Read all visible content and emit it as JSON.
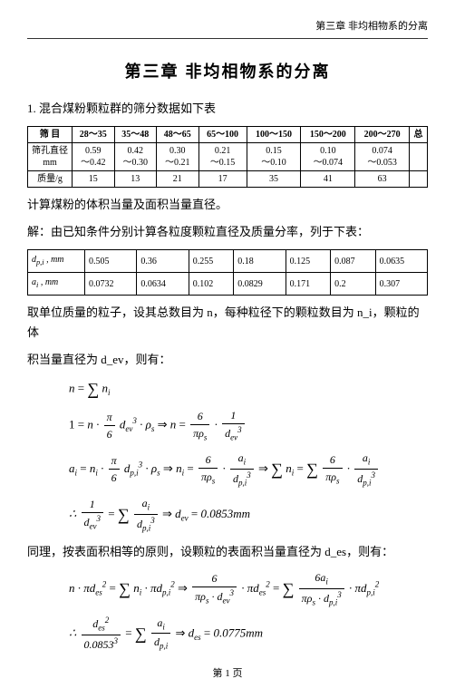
{
  "running_head": "第三章  非均相物系的分离",
  "chapter_title": "第三章  非均相物系的分离",
  "para1": "1. 混合煤粉颗粒群的筛分数据如下表",
  "table1": {
    "headers": [
      "筛  目",
      "28～35",
      "35～48",
      "48～65",
      "65～100",
      "100～150",
      "150～200",
      "200～270",
      "总"
    ],
    "row2_label": "筛孔直径\nmm",
    "row2": [
      "0.59\n～0.42",
      "0.42\n～0.30",
      "0.30\n～0.21",
      "0.21\n～0.15",
      "0.15\n～0.10",
      "0.10\n～0.074",
      "0.074\n～0.053",
      ""
    ],
    "row3_label": "质量/g",
    "row3": [
      "15",
      "13",
      "21",
      "17",
      "35",
      "41",
      "63",
      ""
    ]
  },
  "para2": "计算煤粉的体积当量及面积当量直径。",
  "para3": "解：由已知条件分别计算各粒度颗粒直径及质量分率，列于下表：",
  "table2": {
    "r1_label": "d_p,i , mm",
    "r1": [
      "0.505",
      "0.36",
      "0.255",
      "0.18",
      "0.125",
      "0.087",
      "0.0635"
    ],
    "r2_label": "a_i , mm",
    "r2": [
      "0.0732",
      "0.0634",
      "0.102",
      "0.0829",
      "0.171",
      "0.2",
      "0.307"
    ]
  },
  "para4a": "取单位质量的粒子，设其总数目为 n，每种粒径下的颗粒数目为 n_i，颗粒的体",
  "para4b": "积当量直径为 d_ev，则有：",
  "para5": "同理，按表面积相等的原则，设颗粒的表面积当量直径为 d_es，则有：",
  "dev_val": "0.0853mm",
  "des_val": "0.0775mm",
  "des_denom": "0.0853",
  "footer": "第  1  页"
}
